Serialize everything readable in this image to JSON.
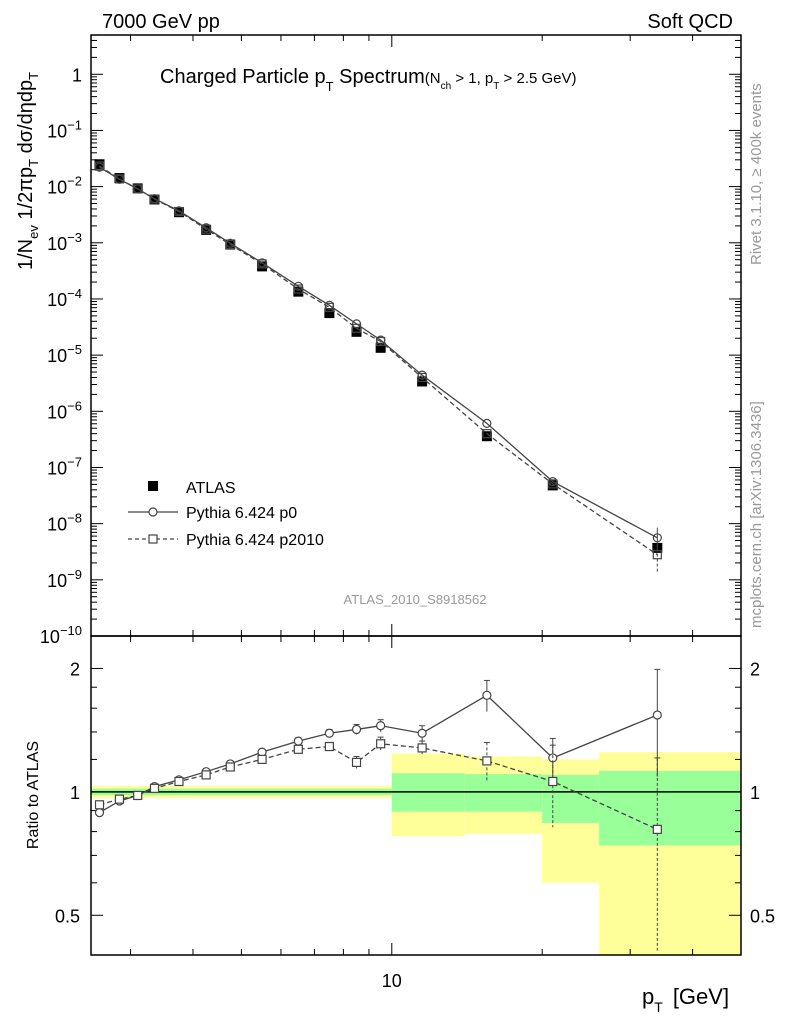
{
  "header": {
    "left": "7000 GeV pp",
    "right": "Soft QCD"
  },
  "side_text": {
    "rivet": "Rivet 3.1.10, ≥ 400k events",
    "mcplots": "mcplots.cern.ch [arXiv:1306.3436]"
  },
  "main_title": {
    "text": "Charged Particle p",
    "sub_T": "T",
    "text2": " Spectrum",
    "cut_open": "(N",
    "cut_ch": "ch",
    "cut_mid": " > 1, p",
    "cut_T": "T",
    "cut_end": " > 2.5 GeV)"
  },
  "ylabel_main": {
    "p1": "1/N",
    "ev": "ev",
    "p2": " 1/2πp",
    "T1": "T",
    "p3": " dσ/dηdp",
    "T2": "T"
  },
  "ylabel_ratio": "Ratio to ATLAS",
  "xlabel": {
    "p": "p",
    "T": "T",
    "unit": "[GeV]"
  },
  "analysis_id": "ATLAS_2010_S8918562",
  "chart_data": [
    {
      "type": "scatter",
      "panel": "spectrum",
      "x_scale": "log",
      "y_scale": "log",
      "xlim": [
        2.5,
        50
      ],
      "ylim": [
        1e-10,
        5
      ],
      "y_ticks": [
        {
          "v": 1,
          "base": "1",
          "exp": ""
        },
        {
          "v": 0.1,
          "base": "10",
          "exp": "−1"
        },
        {
          "v": 0.01,
          "base": "10",
          "exp": "−2"
        },
        {
          "v": 0.001,
          "base": "10",
          "exp": "−3"
        },
        {
          "v": 0.0001,
          "base": "10",
          "exp": "−4"
        },
        {
          "v": 1e-05,
          "base": "10",
          "exp": "−5"
        },
        {
          "v": 1e-06,
          "base": "10",
          "exp": "−6"
        },
        {
          "v": 1e-07,
          "base": "10",
          "exp": "−7"
        },
        {
          "v": 1e-08,
          "base": "10",
          "exp": "−8"
        },
        {
          "v": 1e-09,
          "base": "10",
          "exp": "−9"
        },
        {
          "v": 1e-10,
          "base": "10",
          "exp": "−10"
        }
      ],
      "legend_position": "bottom-left",
      "series": [
        {
          "name": "ATLAS",
          "marker": "filled-square",
          "color": "#000000",
          "x": [
            2.6,
            2.85,
            3.1,
            3.35,
            3.75,
            4.25,
            4.75,
            5.5,
            6.5,
            7.5,
            8.5,
            9.5,
            11.5,
            15.5,
            21.0,
            34.0
          ],
          "y": [
            0.025,
            0.0142,
            0.0093,
            0.0059,
            0.0035,
            0.0017,
            0.00093,
            0.00038,
            0.000135,
            5.6e-05,
            2.6e-05,
            1.35e-05,
            3.4e-06,
            3.6e-07,
            4.8e-08,
            3.7e-09
          ]
        },
        {
          "name": "Pythia 6.424 p0",
          "marker": "open-circle",
          "line": "solid",
          "color": "#444444",
          "x": [
            2.6,
            2.85,
            3.1,
            3.35,
            3.75,
            4.25,
            4.75,
            5.5,
            6.5,
            7.5,
            8.5,
            9.5,
            11.5,
            15.5,
            21.0,
            34.0
          ],
          "y": [
            0.0222,
            0.0135,
            0.0091,
            0.0061,
            0.0037,
            0.00185,
            0.00098,
            0.00044,
            0.000168,
            7.7e-05,
            3.6e-05,
            1.85e-05,
            4.4e-06,
            6.1e-07,
            5.6e-08,
            5.6e-09
          ]
        },
        {
          "name": "Pythia 6.424 p2010",
          "marker": "open-square",
          "line": "dashed",
          "color": "#444444",
          "x": [
            2.6,
            2.85,
            3.1,
            3.35,
            3.75,
            4.25,
            4.75,
            5.5,
            6.5,
            7.5,
            8.5,
            9.5,
            11.5,
            15.5,
            21.0,
            34.0
          ],
          "y": [
            0.0232,
            0.0137,
            0.0091,
            0.006,
            0.0036,
            0.00175,
            0.00093,
            0.00042,
            0.00015,
            7.1e-05,
            3e-05,
            1.75e-05,
            4e-06,
            4e-07,
            5.1e-08,
            2.8e-09
          ]
        }
      ]
    },
    {
      "type": "line",
      "panel": "ratio",
      "x_scale": "log",
      "y_scale": "log",
      "xlim": [
        2.5,
        50
      ],
      "ylim": [
        0.4,
        2.4
      ],
      "x_ticks": [
        {
          "v": 10,
          "label": "10"
        }
      ],
      "y_ticks": [
        {
          "v": 0.5,
          "label": "0.5"
        },
        {
          "v": 1,
          "label": "1"
        },
        {
          "v": 2,
          "label": "2"
        }
      ],
      "ref_line": 1,
      "bands": [
        {
          "x0": 2.5,
          "x1": 10,
          "yellow": [
            0.966,
            1.034
          ],
          "green": [
            0.982,
            1.018
          ]
        },
        {
          "x0": 10,
          "x1": 14,
          "yellow": [
            0.78,
            1.24
          ],
          "green": [
            0.895,
            1.11
          ]
        },
        {
          "x0": 14,
          "x1": 20,
          "yellow": [
            0.79,
            1.22
          ],
          "green": [
            0.895,
            1.105
          ]
        },
        {
          "x0": 20,
          "x1": 26,
          "yellow": [
            0.6,
            1.2
          ],
          "green": [
            0.84,
            1.1
          ]
        },
        {
          "x0": 26,
          "x1": 50,
          "yellow": [
            0.35,
            1.25
          ],
          "green": [
            0.74,
            1.125
          ]
        }
      ],
      "series": [
        {
          "name": "Pythia 6.424 p0",
          "marker": "open-circle",
          "line": "solid",
          "x": [
            2.6,
            2.85,
            3.1,
            3.35,
            3.75,
            4.25,
            4.75,
            5.5,
            6.5,
            7.5,
            8.5,
            9.5,
            11.5,
            15.5,
            21.0,
            34.0
          ],
          "y": [
            0.89,
            0.95,
            0.98,
            1.03,
            1.07,
            1.12,
            1.17,
            1.25,
            1.33,
            1.39,
            1.42,
            1.45,
            1.39,
            1.72,
            1.21,
            1.54
          ],
          "err": [
            0.02,
            0.02,
            0.015,
            0.015,
            0.015,
            0.015,
            0.02,
            0.02,
            0.025,
            0.03,
            0.04,
            0.05,
            0.06,
            0.15,
            0.14,
            0.45
          ]
        },
        {
          "name": "Pythia 6.424 p2010",
          "marker": "open-square",
          "line": "dashed",
          "x": [
            2.6,
            2.85,
            3.1,
            3.35,
            3.75,
            4.25,
            4.75,
            5.5,
            6.5,
            7.5,
            8.5,
            9.5,
            11.5,
            15.5,
            21.0,
            34.0
          ],
          "y": [
            0.93,
            0.96,
            0.98,
            1.02,
            1.06,
            1.1,
            1.15,
            1.2,
            1.27,
            1.29,
            1.18,
            1.31,
            1.28,
            1.19,
            1.06,
            0.81
          ],
          "err": [
            0.02,
            0.02,
            0.015,
            0.015,
            0.015,
            0.015,
            0.02,
            0.02,
            0.025,
            0.03,
            0.04,
            0.05,
            0.05,
            0.13,
            0.24,
            0.4
          ]
        }
      ]
    }
  ]
}
